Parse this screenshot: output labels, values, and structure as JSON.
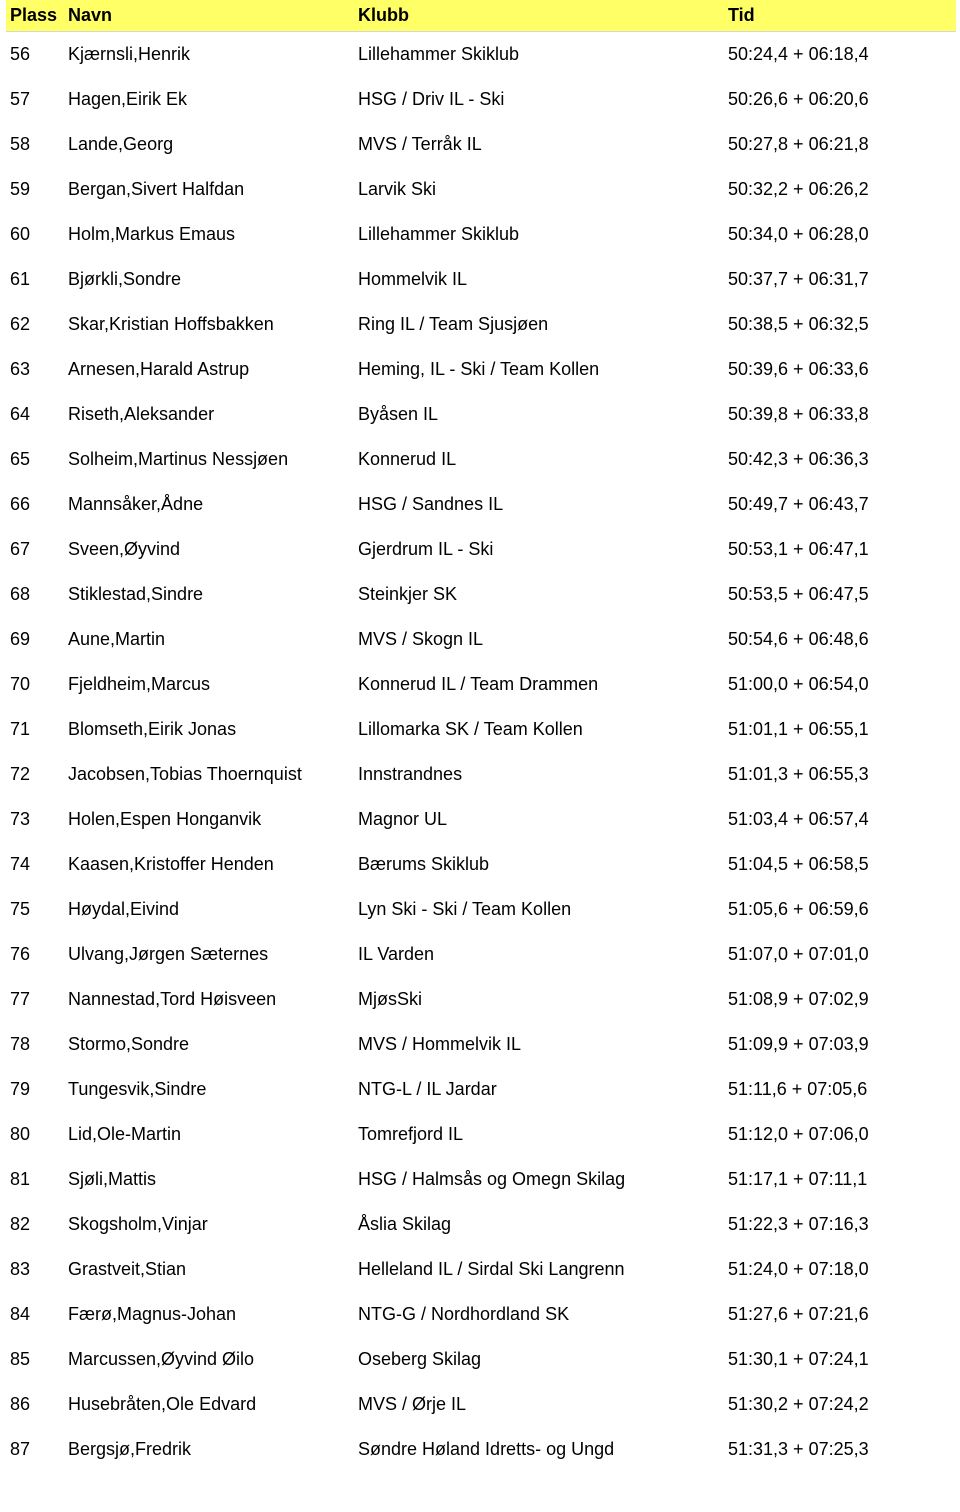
{
  "table": {
    "header": {
      "plass": "Plass",
      "navn": "Navn",
      "klubb": "Klubb",
      "tid": "Tid"
    },
    "header_bg": "#ffff66",
    "rows": [
      {
        "plass": "56",
        "navn": "Kjærnsli,Henrik",
        "klubb": "Lillehammer Skiklub",
        "tid": "50:24,4 + 06:18,4"
      },
      {
        "plass": "57",
        "navn": "Hagen,Eirik Ek",
        "klubb": "HSG / Driv IL - Ski",
        "tid": "50:26,6 + 06:20,6"
      },
      {
        "plass": "58",
        "navn": "Lande,Georg",
        "klubb": "MVS / Terråk IL",
        "tid": "50:27,8 + 06:21,8"
      },
      {
        "plass": "59",
        "navn": "Bergan,Sivert Halfdan",
        "klubb": "Larvik Ski",
        "tid": "50:32,2 + 06:26,2"
      },
      {
        "plass": "60",
        "navn": "Holm,Markus Emaus",
        "klubb": "Lillehammer Skiklub",
        "tid": "50:34,0 + 06:28,0"
      },
      {
        "plass": "61",
        "navn": "Bjørkli,Sondre",
        "klubb": "Hommelvik IL",
        "tid": "50:37,7 + 06:31,7"
      },
      {
        "plass": "62",
        "navn": "Skar,Kristian Hoffsbakken",
        "klubb": "Ring IL / Team Sjusjøen",
        "tid": "50:38,5 + 06:32,5"
      },
      {
        "plass": "63",
        "navn": "Arnesen,Harald Astrup",
        "klubb": "Heming, IL - Ski / Team Kollen",
        "tid": "50:39,6 + 06:33,6"
      },
      {
        "plass": "64",
        "navn": "Riseth,Aleksander",
        "klubb": "Byåsen IL",
        "tid": "50:39,8 + 06:33,8"
      },
      {
        "plass": "65",
        "navn": "Solheim,Martinus Nessjøen",
        "klubb": "Konnerud IL",
        "tid": "50:42,3 + 06:36,3"
      },
      {
        "plass": "66",
        "navn": "Mannsåker,Ådne",
        "klubb": "HSG / Sandnes IL",
        "tid": "50:49,7 + 06:43,7"
      },
      {
        "plass": "67",
        "navn": "Sveen,Øyvind",
        "klubb": "Gjerdrum IL - Ski",
        "tid": "50:53,1 + 06:47,1"
      },
      {
        "plass": "68",
        "navn": "Stiklestad,Sindre",
        "klubb": "Steinkjer SK",
        "tid": "50:53,5 + 06:47,5"
      },
      {
        "plass": "69",
        "navn": "Aune,Martin",
        "klubb": "MVS / Skogn IL",
        "tid": "50:54,6 + 06:48,6"
      },
      {
        "plass": "70",
        "navn": "Fjeldheim,Marcus",
        "klubb": "Konnerud IL / Team Drammen",
        "tid": "51:00,0 + 06:54,0"
      },
      {
        "plass": "71",
        "navn": "Blomseth,Eirik Jonas",
        "klubb": "Lillomarka SK / Team Kollen",
        "tid": "51:01,1 + 06:55,1"
      },
      {
        "plass": "72",
        "navn": "Jacobsen,Tobias Thoernquist",
        "klubb": "Innstrandnes",
        "tid": "51:01,3 + 06:55,3"
      },
      {
        "plass": "73",
        "navn": "Holen,Espen Honganvik",
        "klubb": "Magnor UL",
        "tid": "51:03,4 + 06:57,4"
      },
      {
        "plass": "74",
        "navn": "Kaasen,Kristoffer Henden",
        "klubb": "Bærums Skiklub",
        "tid": "51:04,5 + 06:58,5"
      },
      {
        "plass": "75",
        "navn": "Høydal,Eivind",
        "klubb": "Lyn Ski - Ski / Team Kollen",
        "tid": "51:05,6 + 06:59,6"
      },
      {
        "plass": "76",
        "navn": "Ulvang,Jørgen Sæternes",
        "klubb": "IL Varden",
        "tid": "51:07,0 + 07:01,0"
      },
      {
        "plass": "77",
        "navn": "Nannestad,Tord Høisveen",
        "klubb": "MjøsSki",
        "tid": "51:08,9 + 07:02,9"
      },
      {
        "plass": "78",
        "navn": "Stormo,Sondre",
        "klubb": "MVS / Hommelvik IL",
        "tid": "51:09,9 + 07:03,9"
      },
      {
        "plass": "79",
        "navn": "Tungesvik,Sindre",
        "klubb": "NTG-L / IL Jardar",
        "tid": "51:11,6 + 07:05,6"
      },
      {
        "plass": "80",
        "navn": "Lid,Ole-Martin",
        "klubb": "Tomrefjord IL",
        "tid": "51:12,0 + 07:06,0"
      },
      {
        "plass": "81",
        "navn": "Sjøli,Mattis",
        "klubb": "HSG / Halmsås og Omegn Skilag",
        "tid": "51:17,1 + 07:11,1"
      },
      {
        "plass": "82",
        "navn": "Skogsholm,Vinjar",
        "klubb": "Åslia Skilag",
        "tid": "51:22,3 + 07:16,3"
      },
      {
        "plass": "83",
        "navn": "Grastveit,Stian",
        "klubb": "Helleland IL / Sirdal Ski Langrenn",
        "tid": "51:24,0 + 07:18,0"
      },
      {
        "plass": "84",
        "navn": "Færø,Magnus-Johan",
        "klubb": "NTG-G / Nordhordland SK",
        "tid": "51:27,6 + 07:21,6"
      },
      {
        "plass": "85",
        "navn": "Marcussen,Øyvind Øilo",
        "klubb": "Oseberg Skilag",
        "tid": "51:30,1 + 07:24,1"
      },
      {
        "plass": "86",
        "navn": "Husebråten,Ole Edvard",
        "klubb": "MVS / Ørje IL",
        "tid": "51:30,2 + 07:24,2"
      },
      {
        "plass": "87",
        "navn": "Bergsjø,Fredrik",
        "klubb": "Søndre Høland Idretts- og Ungd",
        "tid": "51:31,3 + 07:25,3"
      }
    ]
  }
}
